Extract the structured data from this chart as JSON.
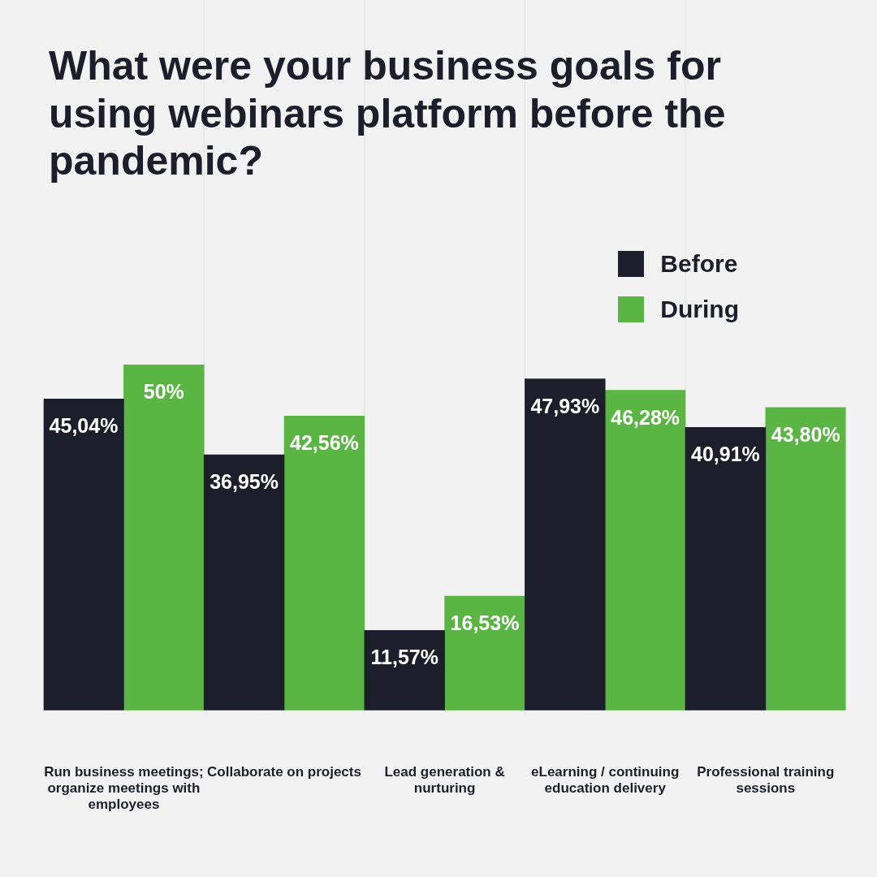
{
  "chart_data": {
    "type": "bar",
    "title": "What were your business goals for using webinars platform before the pandemic?",
    "categories": [
      "Run business meetings; organize meetings with employees",
      "Collaborate on projects",
      "Lead generation & nurturing",
      "eLearning / continuing education delivery",
      "Professional training sessions"
    ],
    "series": [
      {
        "name": "Before",
        "color": "#1c1f2b",
        "values": [
          45.04,
          36.95,
          11.57,
          47.93,
          40.91
        ],
        "value_labels": [
          "45,04%",
          "36,95%",
          "11,57%",
          "47,93%",
          "40,91%"
        ]
      },
      {
        "name": "During",
        "color": "#5ab642",
        "values": [
          50,
          42.56,
          16.53,
          46.28,
          43.8
        ],
        "value_labels": [
          "50%",
          "42,56%",
          "16,53%",
          "46,28%",
          "43,80%"
        ]
      }
    ],
    "legend": "top right",
    "grid": "x"
  }
}
